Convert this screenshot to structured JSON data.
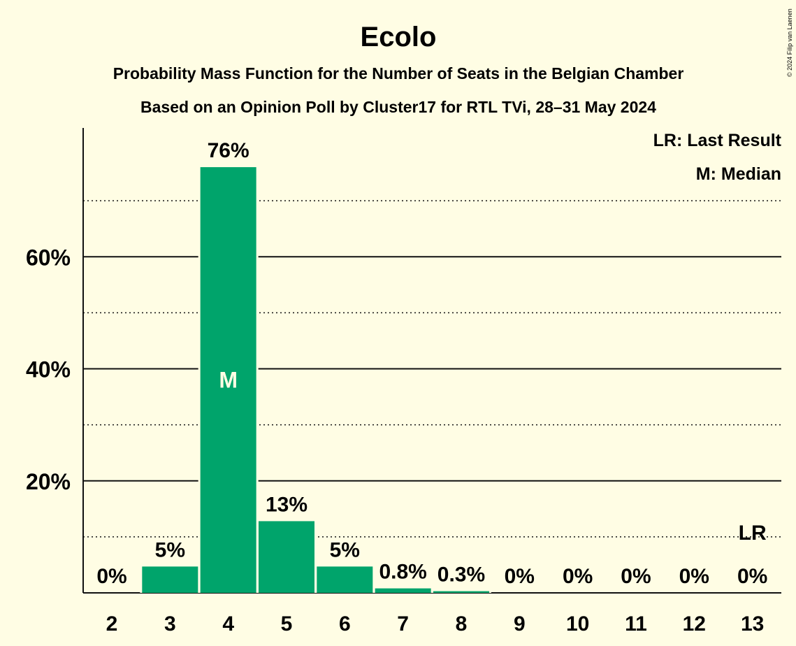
{
  "chart_data": {
    "type": "bar",
    "title": "Ecolo",
    "subtitle_1": "Probability Mass Function for the Number of Seats in the Belgian Chamber",
    "subtitle_2": "Based on an Opinion Poll by Cluster17 for RTL TVi, 28–31 May 2024",
    "categories": [
      "2",
      "3",
      "4",
      "5",
      "6",
      "7",
      "8",
      "9",
      "10",
      "11",
      "12",
      "13"
    ],
    "values": [
      0,
      4.7,
      76.0,
      12.8,
      4.7,
      0.8,
      0.3,
      0,
      0,
      0,
      0,
      0
    ],
    "value_labels": [
      "0%",
      "5%",
      "76%",
      "13%",
      "5%",
      "0.8%",
      "0.3%",
      "0%",
      "0%",
      "0%",
      "0%",
      "0%"
    ],
    "ylim": [
      0,
      83
    ],
    "yticks_major": [
      20,
      40,
      60
    ],
    "ytick_labels": [
      "20%",
      "40%",
      "60%"
    ],
    "yticks_minor": [
      10,
      30,
      50,
      70
    ],
    "xlabel": "",
    "ylabel": "",
    "bar_color": "#00A46B",
    "background_color": "#FFFDE4",
    "median": {
      "category": "4",
      "mark": "M"
    },
    "last_result": {
      "category": "13",
      "mark": "LR"
    },
    "legend": {
      "placement": "top-right",
      "items": [
        "LR: Last Result",
        "M: Median"
      ]
    },
    "copyright": "© 2024 Filip van Laenen"
  }
}
